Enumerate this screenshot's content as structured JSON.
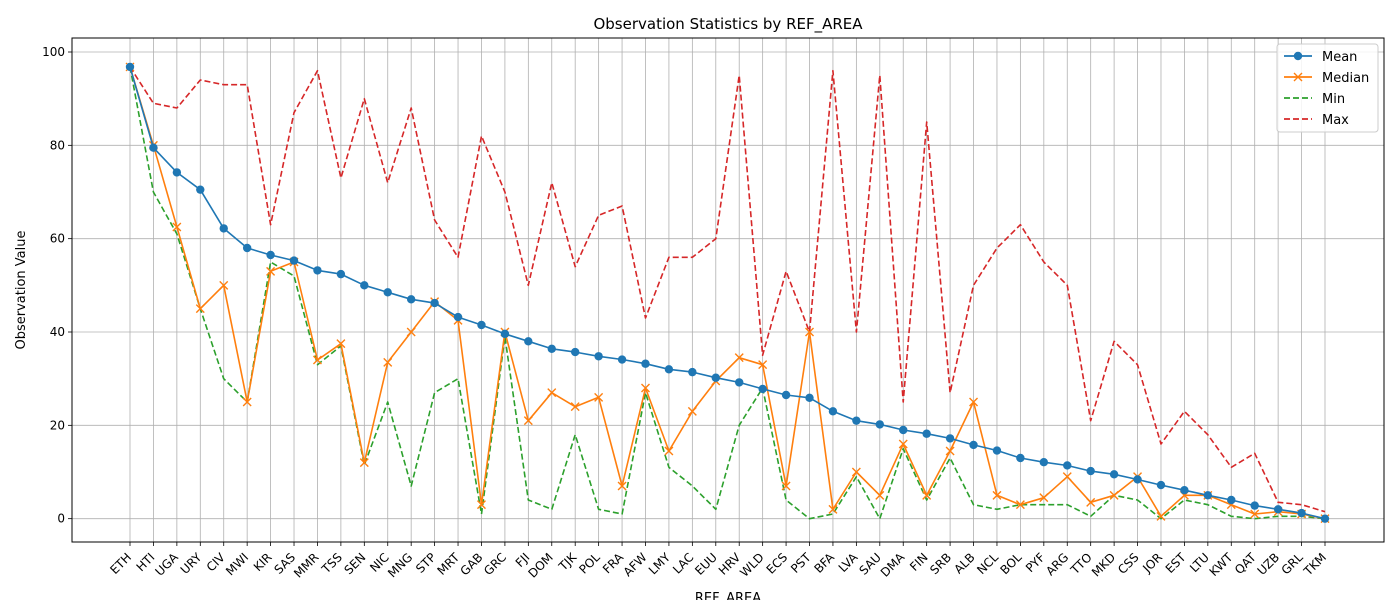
{
  "chart_data": {
    "type": "line",
    "title": "Observation Statistics by REF_AREA",
    "xlabel": "REF_AREA",
    "ylabel": "Observation Value",
    "ylim": [
      -5,
      103
    ],
    "yticks": [
      0,
      20,
      40,
      60,
      80,
      100
    ],
    "grid": true,
    "legend_position": "top-right",
    "tick_categories": [
      "ETH",
      "HTI",
      "UGA",
      "URY",
      "CIV",
      "MWI",
      "KIR",
      "SAS",
      "MMR",
      "TSS",
      "SEN",
      "NIC",
      "MNG",
      "STP",
      "MRT",
      "GAB",
      "GRC",
      "FJI",
      "DOM",
      "TJK",
      "POL",
      "FRA",
      "AFW",
      "LMY",
      "LAC",
      "EUU",
      "HRV",
      "WLD",
      "ECS",
      "PST",
      "BFA",
      "LVA",
      "SAU",
      "DMA",
      "FIN",
      "SRB",
      "ALB",
      "NCL",
      "BOL",
      "PYF",
      "ARG",
      "TTO",
      "MKD",
      "CSS",
      "JOR",
      "EST",
      "LTU",
      "KWT",
      "QAT",
      "UZB",
      "GRL",
      "TKM"
    ],
    "n_points": 52,
    "series": [
      {
        "name": "Mean",
        "color": "#1f77b4",
        "style": "solid",
        "marker": "circle",
        "values": [
          96.8,
          79.5,
          74.2,
          70.5,
          62.2,
          58.0,
          56.5,
          55.3,
          53.2,
          52.4,
          50.0,
          48.5,
          47.0,
          46.2,
          43.2,
          41.5,
          39.6,
          38.0,
          36.4,
          35.7,
          34.8,
          34.1,
          33.2,
          32.0,
          31.4,
          30.2,
          29.2,
          27.8,
          26.5,
          25.9,
          23.0,
          21.0,
          20.2,
          19.0,
          18.2,
          17.2,
          15.8,
          14.6,
          13.0,
          12.1,
          11.4,
          10.2,
          9.5,
          8.4,
          7.2,
          6.1,
          5.0,
          4.0,
          2.8,
          2.0,
          1.2,
          0.0
        ]
      },
      {
        "name": "Median",
        "color": "#ff7f0e",
        "style": "solid",
        "marker": "x",
        "values": [
          96.8,
          80.0,
          62.5,
          45.0,
          50.0,
          25.0,
          53.0,
          55.0,
          34.0,
          37.5,
          12.0,
          33.5,
          40.0,
          46.5,
          42.5,
          3.0,
          40.0,
          21.0,
          27.0,
          24.0,
          26.0,
          7.0,
          28.0,
          14.5,
          23.0,
          29.5,
          34.5,
          33.0,
          7.0,
          40.0,
          2.0,
          10.0,
          5.0,
          16.0,
          5.0,
          14.5,
          25.0,
          5.0,
          3.0,
          4.5,
          9.0,
          3.5,
          5.0,
          9.0,
          0.5,
          5.0,
          5.0,
          3.0,
          1.0,
          1.5,
          1.0,
          0.0
        ]
      },
      {
        "name": "Min",
        "color": "#2ca02c",
        "style": "dashed",
        "marker": "none",
        "values": [
          96.8,
          70.0,
          61.0,
          45.0,
          30.0,
          25.0,
          55.0,
          52.0,
          33.0,
          37.0,
          11.5,
          25.0,
          7.0,
          27.0,
          30.0,
          1.0,
          39.0,
          4.0,
          2.0,
          18.0,
          2.0,
          1.0,
          27.0,
          11.0,
          7.0,
          2.0,
          20.0,
          28.0,
          4.0,
          0.0,
          1.0,
          9.0,
          0.0,
          15.0,
          4.0,
          13.0,
          3.0,
          2.0,
          3.0,
          3.0,
          3.0,
          0.5,
          5.0,
          4.0,
          0.0,
          4.0,
          3.0,
          0.5,
          0.0,
          0.5,
          0.5,
          0.0
        ]
      },
      {
        "name": "Max",
        "color": "#d62728",
        "style": "dashed",
        "marker": "none",
        "values": [
          96.8,
          89.0,
          88.0,
          94.0,
          93.0,
          93.0,
          63.0,
          87.0,
          96.0,
          73.0,
          90.0,
          72.0,
          88.0,
          64.0,
          56.0,
          82.0,
          70.0,
          50.0,
          72.0,
          54.0,
          65.0,
          67.0,
          43.0,
          56.0,
          56.0,
          60.0,
          95.0,
          35.0,
          53.0,
          40.0,
          96.0,
          40.0,
          95.0,
          25.0,
          85.0,
          27.0,
          50.0,
          58.0,
          63.0,
          55.0,
          50.0,
          21.0,
          38.0,
          33.0,
          16.0,
          23.0,
          18.0,
          11.0,
          14.0,
          3.5,
          3.0,
          1.5
        ]
      }
    ]
  }
}
